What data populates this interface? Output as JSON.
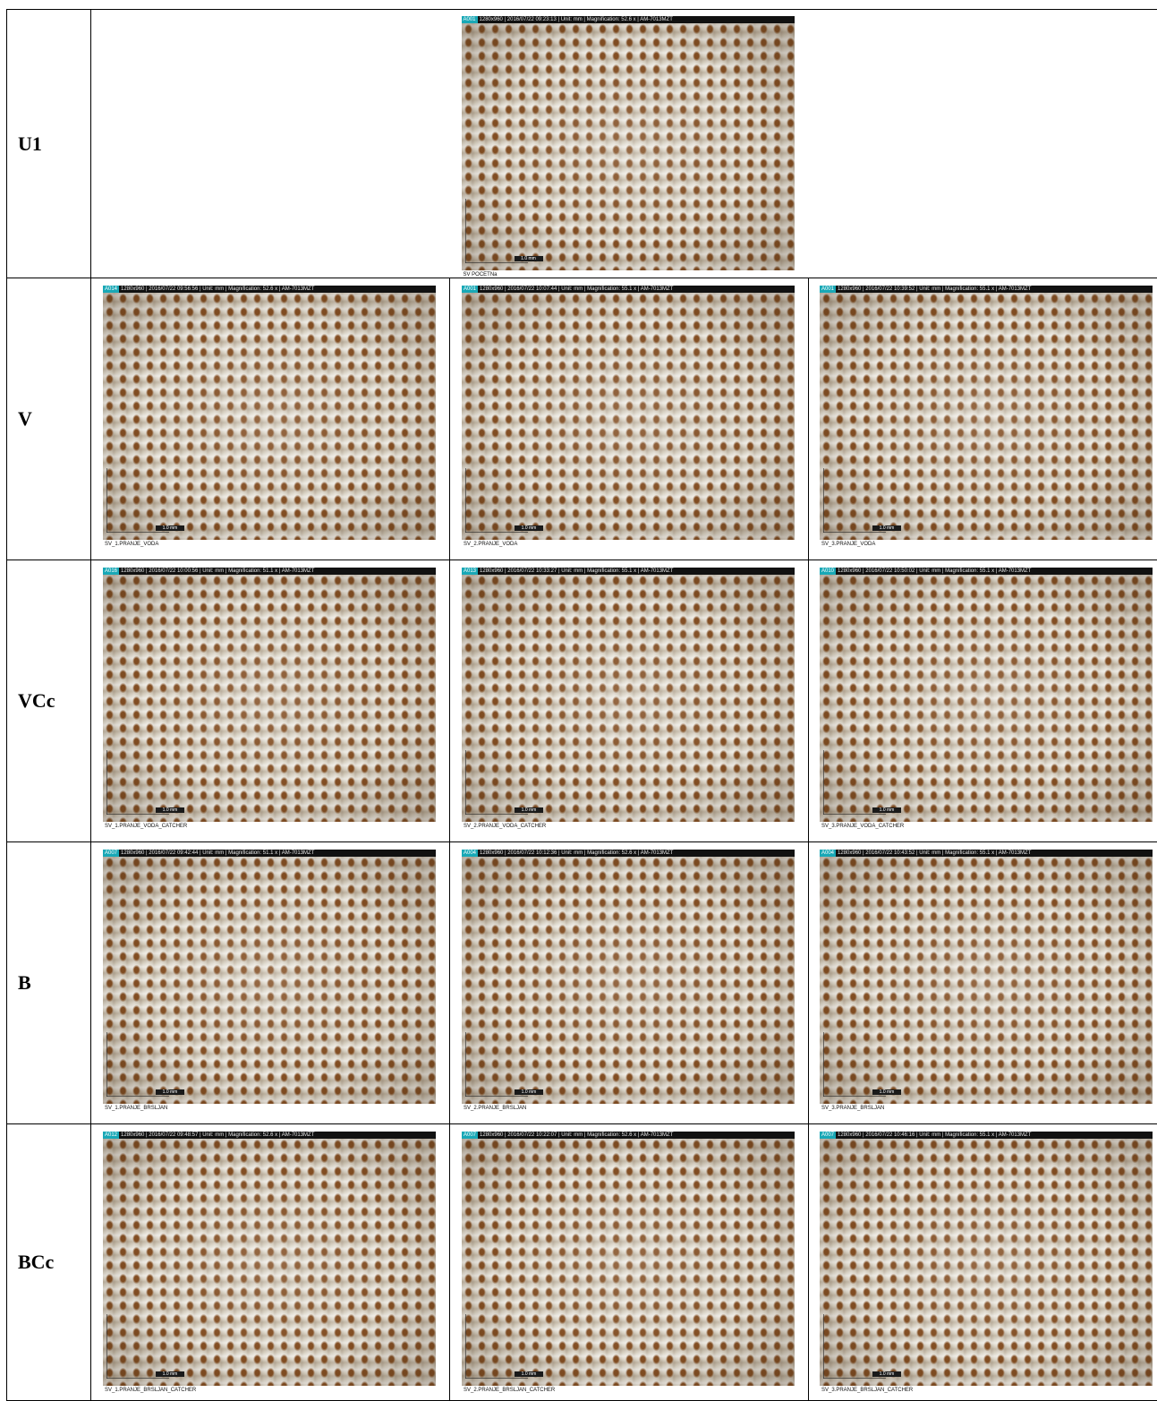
{
  "rows": [
    {
      "label": "U1",
      "images": [
        {
          "id": "A001",
          "info": "1280x960 | 2016/07/22 09:23:13 | Unit: mm | Magnification: 52.6 x | AM-7013MZT",
          "scale": "1.0 mm",
          "caption": "SV POCETNa"
        }
      ]
    },
    {
      "label": "V",
      "images": [
        {
          "id": "A014",
          "info": "1280x960 | 2016/07/22 09:56:56 | Unit: mm | Magnification: 52.6 x | AM-7013MZT",
          "scale": "1.0 mm",
          "caption": "SV_1.PRANJE_VODA"
        },
        {
          "id": "A001",
          "info": "1280x960 | 2016/07/22 10:07:44 | Unit: mm | Magnification: 55.1 x | AM-7013MZT",
          "scale": "1.0 mm",
          "caption": "SV_2.PRANJE_VODA"
        },
        {
          "id": "A001",
          "info": "1280x960 | 2016/07/22 10:39:52 | Unit: mm | Magnification: 55.1 x | AM-7013MZT",
          "scale": "1.0 mm",
          "caption": "SV_3.PRANJE_VODA"
        }
      ]
    },
    {
      "label": "VCc",
      "images": [
        {
          "id": "A016",
          "info": "1280x960 | 2016/07/22 10:00:56 | Unit: mm | Magnification: 51.1 x | AM-7013MZT",
          "scale": "1.0 mm",
          "caption": "SV_1.PRANJE_VODA_CATCHER"
        },
        {
          "id": "A013",
          "info": "1280x960 | 2016/07/22 10:33:27 | Unit: mm | Magnification: 55.1 x | AM-7013MZT",
          "scale": "1.0 mm",
          "caption": "SV_2.PRANJE_VODA_CATCHER"
        },
        {
          "id": "A010",
          "info": "1280x960 | 2016/07/22 10:50:02 | Unit: mm | Magnification: 55.1 x | AM-7013MZT",
          "scale": "1.0 mm",
          "caption": "SV_3.PRANJE_VODA_CATCHER"
        }
      ]
    },
    {
      "label": "B",
      "images": [
        {
          "id": "A007",
          "info": "1280x960 | 2016/07/22 09:42:44 | Unit: mm | Magnification: 51.1 x | AM-7013MZT",
          "scale": "1.0 mm",
          "caption": "SV_1.PRANJE_BRSLJAN"
        },
        {
          "id": "A004",
          "info": "1280x960 | 2016/07/22 10:12:36 | Unit: mm | Magnification: 52.6 x | AM-7013MZT",
          "scale": "1.0 mm",
          "caption": "SV_2.PRANJE_BRSLJAN"
        },
        {
          "id": "A004",
          "info": "1280x960 | 2016/07/22 10:43:52 | Unit: mm | Magnification: 55.1 x | AM-7013MZT",
          "scale": "1.0 mm",
          "caption": "SV_3.PRANJE_BRSLJAN"
        }
      ]
    },
    {
      "label": "BCc",
      "images": [
        {
          "id": "A012",
          "info": "1280x960 | 2016/07/22 09:48:57 | Unit: mm | Magnification: 52.6 x | AM-7013MZT",
          "scale": "1.0 mm",
          "caption": "SV_1.PRANJE_BRSLJAN_CATCHER"
        },
        {
          "id": "A007",
          "info": "1280x960 | 2016/07/22 10:22:07 | Unit: mm | Magnification: 52.6 x | AM-7013MZT",
          "scale": "1.0 mm",
          "caption": "SV_2.PRANJE_BRSLJAN_CATCHER"
        },
        {
          "id": "A007",
          "info": "1280x960 | 2016/07/22 10:46:16 | Unit: mm | Magnification: 55.1 x | AM-7013MZT",
          "scale": "1.0 mm",
          "caption": "SV_3.PRANJE_BRSLJAN_CATCHER"
        }
      ]
    }
  ]
}
